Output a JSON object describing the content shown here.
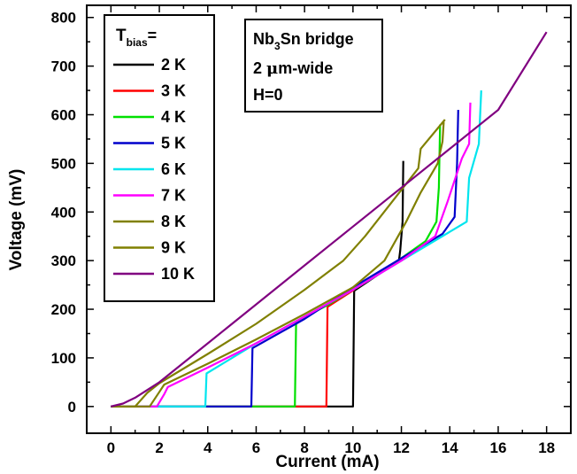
{
  "chart_data": {
    "type": "line",
    "xlabel": "Current (mA)",
    "ylabel": "Voltage (mV)",
    "xlim": [
      -1,
      19
    ],
    "ylim": [
      -55,
      825
    ],
    "xticks": [
      0,
      2,
      4,
      6,
      8,
      10,
      12,
      14,
      16,
      18
    ],
    "yticks": [
      0,
      100,
      200,
      300,
      400,
      500,
      600,
      700,
      800
    ],
    "grid": false,
    "legend": {
      "title_main": "T",
      "title_sub": "bias",
      "title_tail": "=",
      "placement": "top-left"
    },
    "annotation": {
      "line1_pre": "Nb",
      "line1_sub": "3",
      "line1_post": "Sn bridge",
      "line2_pre": "2 ",
      "line2_mu": "μ",
      "line2_post": "m-wide",
      "line3": "H=0"
    },
    "series": [
      {
        "name": "2 K",
        "color": "#000000",
        "points": [
          [
            0,
            0
          ],
          [
            10.0,
            0
          ],
          [
            10.05,
            238
          ],
          [
            11.9,
            300
          ],
          [
            11.95,
            320
          ],
          [
            12.05,
            380
          ],
          [
            12.08,
            505
          ]
        ]
      },
      {
        "name": "3 K",
        "color": "#ff0000",
        "points": [
          [
            0,
            0
          ],
          [
            8.9,
            0
          ],
          [
            8.95,
            205
          ],
          [
            10.05,
            240
          ]
        ]
      },
      {
        "name": "4 K",
        "color": "#00e000",
        "points": [
          [
            0,
            0
          ],
          [
            7.6,
            0
          ],
          [
            7.65,
            175
          ],
          [
            9.0,
            210
          ],
          [
            11.0,
            270
          ],
          [
            13.0,
            340
          ],
          [
            13.45,
            380
          ],
          [
            13.55,
            450
          ],
          [
            13.6,
            580
          ]
        ]
      },
      {
        "name": "5 K",
        "color": "#0000cc",
        "points": [
          [
            0,
            0
          ],
          [
            5.8,
            0
          ],
          [
            5.85,
            120
          ],
          [
            8.0,
            180
          ],
          [
            10.0,
            245
          ],
          [
            12.0,
            305
          ],
          [
            13.7,
            355
          ],
          [
            14.2,
            390
          ],
          [
            14.3,
            500
          ],
          [
            14.35,
            610
          ]
        ]
      },
      {
        "name": "6 K",
        "color": "#00e5ee",
        "points": [
          [
            0,
            0
          ],
          [
            3.9,
            0
          ],
          [
            3.95,
            68
          ],
          [
            6.0,
            130
          ],
          [
            8.0,
            185
          ],
          [
            10.0,
            240
          ],
          [
            12.0,
            300
          ],
          [
            14.7,
            380
          ],
          [
            14.8,
            470
          ],
          [
            15.2,
            540
          ],
          [
            15.3,
            650
          ]
        ]
      },
      {
        "name": "7 K",
        "color": "#ff00ff",
        "points": [
          [
            0,
            0
          ],
          [
            1.9,
            0
          ],
          [
            2.2,
            25
          ],
          [
            2.35,
            40
          ],
          [
            4.0,
            80
          ],
          [
            6.0,
            130
          ],
          [
            8.0,
            185
          ],
          [
            10.0,
            240
          ],
          [
            12.0,
            300
          ],
          [
            13.4,
            350
          ],
          [
            13.9,
            420
          ],
          [
            14.5,
            510
          ],
          [
            14.8,
            540
          ],
          [
            14.85,
            625
          ]
        ]
      },
      {
        "name": "8 K",
        "color": "#808000",
        "points": [
          [
            0,
            0
          ],
          [
            1.6,
            0
          ],
          [
            2.0,
            30
          ],
          [
            2.2,
            45
          ],
          [
            4.0,
            88
          ],
          [
            6.0,
            138
          ],
          [
            8.0,
            190
          ],
          [
            10.0,
            245
          ],
          [
            11.3,
            300
          ],
          [
            12.2,
            380
          ],
          [
            12.8,
            440
          ],
          [
            13.5,
            500
          ],
          [
            13.7,
            545
          ],
          [
            13.75,
            585
          ]
        ]
      },
      {
        "name": "9 K",
        "color": "#808000",
        "points": [
          [
            0,
            0
          ],
          [
            1.0,
            0
          ],
          [
            1.5,
            28
          ],
          [
            2.0,
            48
          ],
          [
            4.0,
            108
          ],
          [
            6.0,
            170
          ],
          [
            8.0,
            240
          ],
          [
            9.6,
            300
          ],
          [
            10.5,
            350
          ],
          [
            11.6,
            420
          ],
          [
            12.7,
            490
          ],
          [
            12.8,
            530
          ],
          [
            13.8,
            590
          ]
        ]
      },
      {
        "name": "10 K",
        "color": "#800080",
        "points": [
          [
            0,
            0
          ],
          [
            0.5,
            6
          ],
          [
            1.0,
            18
          ],
          [
            2.0,
            50
          ],
          [
            4.0,
            130
          ],
          [
            6.0,
            210
          ],
          [
            8.0,
            290
          ],
          [
            10.0,
            370
          ],
          [
            12.0,
            450
          ],
          [
            14.0,
            530
          ],
          [
            16.0,
            610
          ],
          [
            18.0,
            770
          ]
        ]
      }
    ]
  }
}
